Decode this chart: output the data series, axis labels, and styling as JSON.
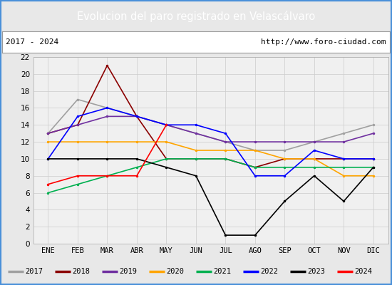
{
  "title": "Evolucion del paro registrado en Velascálvaro",
  "title_bgcolor": "#4a90d9",
  "title_color": "white",
  "subtitle_left": "2017 - 2024",
  "subtitle_right": "http://www.foro-ciudad.com",
  "months": [
    "ENE",
    "FEB",
    "MAR",
    "ABR",
    "MAY",
    "JUN",
    "JUL",
    "AGO",
    "SEP",
    "OCT",
    "NOV",
    "DIC"
  ],
  "ylim": [
    0,
    22
  ],
  "yticks": [
    0,
    2,
    4,
    6,
    8,
    10,
    12,
    14,
    16,
    18,
    20,
    22
  ],
  "series": {
    "2017": {
      "color": "#a0a0a0",
      "data": [
        13,
        17,
        16,
        15,
        14,
        13,
        12,
        11,
        11,
        12,
        13,
        14
      ]
    },
    "2018": {
      "color": "#8b0000",
      "data": [
        13,
        14,
        21,
        15,
        10,
        10,
        10,
        9,
        10,
        10,
        10,
        10
      ]
    },
    "2019": {
      "color": "#7030a0",
      "data": [
        13,
        14,
        15,
        15,
        14,
        13,
        12,
        12,
        12,
        12,
        12,
        13
      ]
    },
    "2020": {
      "color": "#ffa500",
      "data": [
        12,
        12,
        12,
        12,
        12,
        11,
        11,
        11,
        10,
        10,
        8,
        8
      ]
    },
    "2021": {
      "color": "#00b050",
      "data": [
        6,
        7,
        8,
        9,
        10,
        10,
        10,
        9,
        9,
        9,
        9,
        9
      ]
    },
    "2022": {
      "color": "#0000ff",
      "data": [
        10,
        15,
        16,
        15,
        14,
        14,
        13,
        8,
        8,
        11,
        10,
        10
      ]
    },
    "2023": {
      "color": "#000000",
      "data": [
        10,
        10,
        10,
        10,
        9,
        8,
        1,
        1,
        5,
        8,
        5,
        9
      ]
    },
    "2024": {
      "color": "#ff0000",
      "data": [
        7,
        8,
        8,
        8,
        14,
        null,
        null,
        null,
        null,
        null,
        null,
        null
      ]
    }
  },
  "legend_order": [
    "2017",
    "2018",
    "2019",
    "2020",
    "2021",
    "2022",
    "2023",
    "2024"
  ],
  "bg_color": "#e8e8e8",
  "plot_bg_color": "#f0f0f0",
  "outer_border_color": "#4a90d9"
}
